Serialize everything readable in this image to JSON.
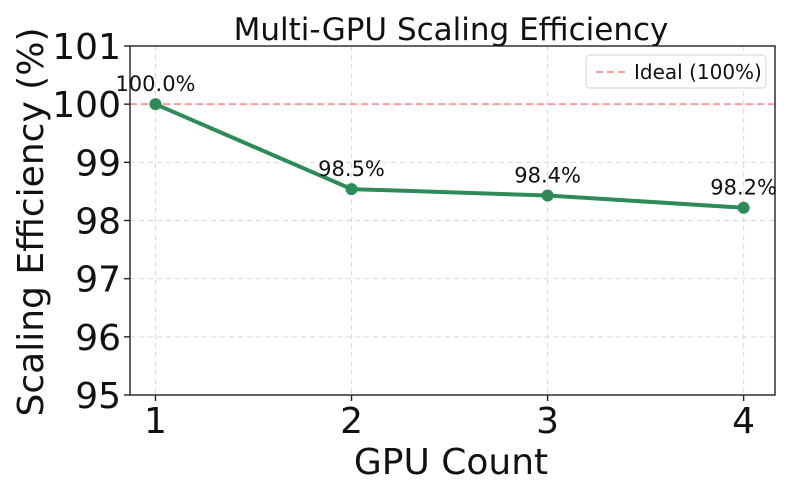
{
  "chart_data": {
    "type": "line",
    "title": "Multi-GPU Scaling Efficiency",
    "xlabel": "GPU Count",
    "ylabel": "Scaling Efficiency (%)",
    "x": [
      1,
      2,
      3,
      4
    ],
    "xticks": [
      "1",
      "2",
      "3",
      "4"
    ],
    "xlim": [
      0.87,
      4.16
    ],
    "ylim": [
      95,
      101
    ],
    "yticks": [
      95,
      96,
      97,
      98,
      99,
      100,
      101
    ],
    "grid": true,
    "series": [
      {
        "name": "Scaling Efficiency",
        "values": [
          100.0,
          98.54,
          98.43,
          98.22
        ],
        "labels": [
          "100.0%",
          "98.5%",
          "98.4%",
          "98.2%"
        ],
        "color": "#2e8b57"
      }
    ],
    "reference_line": {
      "name": "Ideal (100%)",
      "value": 100,
      "color": "#f4a09a"
    },
    "legend": {
      "position": "top-right",
      "entries": [
        "Ideal (100%)"
      ]
    }
  }
}
